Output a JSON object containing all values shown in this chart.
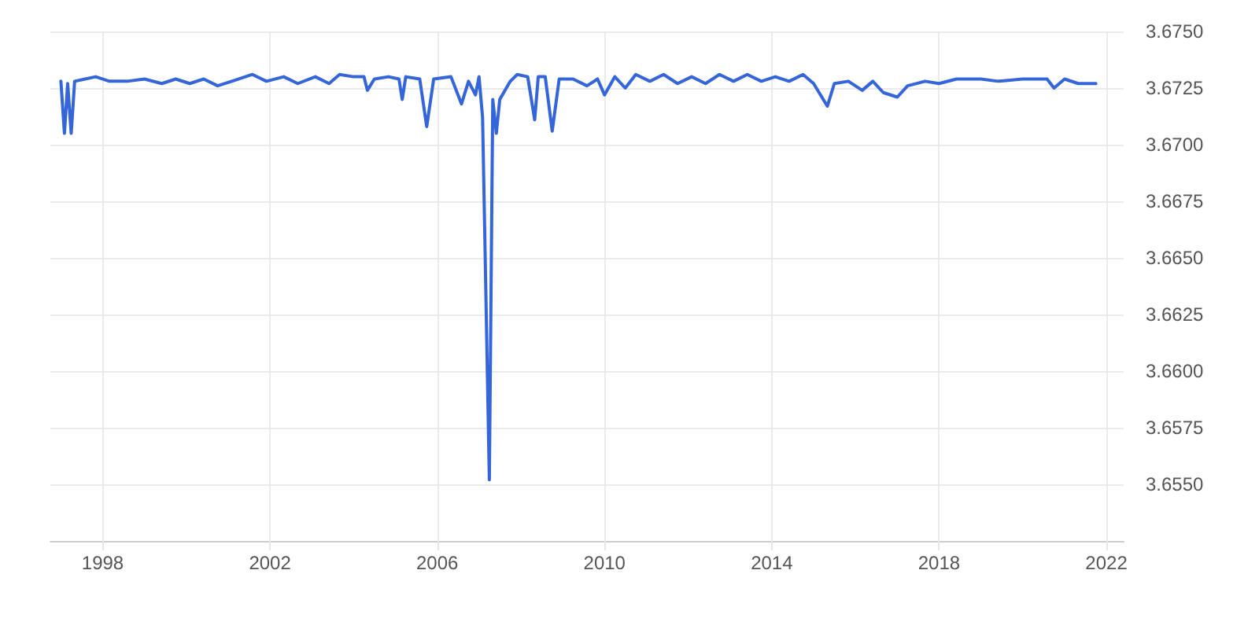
{
  "chart_data": {
    "type": "line",
    "color": "#3465d9",
    "line_style": "solid",
    "marker": "none",
    "grid": true,
    "x": [
      "1997-01",
      "1997-02",
      "1997-03",
      "1997-04",
      "1997-05",
      "1997-08",
      "1997-11",
      "1998-03",
      "1998-08",
      "1999-01",
      "1999-06",
      "1999-10",
      "2000-02",
      "2000-06",
      "2000-10",
      "2001-02",
      "2001-08",
      "2001-12",
      "2002-05",
      "2002-09",
      "2003-02",
      "2003-06",
      "2003-09",
      "2004-01",
      "2004-04",
      "2004-05",
      "2004-07",
      "2004-11",
      "2005-02",
      "2005-03",
      "2005-04",
      "2005-08",
      "2005-10",
      "2005-12",
      "2006-05",
      "2006-08",
      "2006-10",
      "2006-12",
      "2007-01",
      "2007-02",
      "2007-04",
      "2007-05",
      "2007-06",
      "2007-07",
      "2007-10",
      "2007-12",
      "2008-03",
      "2008-05",
      "2008-06",
      "2008-08",
      "2008-10",
      "2008-12",
      "2009-04",
      "2009-08",
      "2009-11",
      "2010-01",
      "2010-04",
      "2010-07",
      "2010-10",
      "2011-02",
      "2011-06",
      "2011-10",
      "2012-02",
      "2012-06",
      "2012-10",
      "2013-02",
      "2013-06",
      "2013-10",
      "2014-02",
      "2014-06",
      "2014-10",
      "2015-01",
      "2015-05",
      "2015-07",
      "2015-11",
      "2016-03",
      "2016-06",
      "2016-09",
      "2017-01",
      "2017-04",
      "2017-09",
      "2018-01",
      "2018-06",
      "2019-01",
      "2019-06",
      "2020-01",
      "2020-08",
      "2020-10",
      "2021-01",
      "2021-05",
      "2021-10"
    ],
    "values": [
      3.6728,
      3.6705,
      3.6727,
      3.6705,
      3.6728,
      3.6729,
      3.673,
      3.6728,
      3.6728,
      3.6729,
      3.6727,
      3.6729,
      3.6727,
      3.6729,
      3.6726,
      3.6728,
      3.6731,
      3.6728,
      3.673,
      3.6727,
      3.673,
      3.6727,
      3.6731,
      3.673,
      3.673,
      3.6724,
      3.6729,
      3.673,
      3.6729,
      3.672,
      3.673,
      3.6729,
      3.6708,
      3.6729,
      3.673,
      3.6718,
      3.6728,
      3.6722,
      3.673,
      3.6712,
      3.6552,
      3.672,
      3.6705,
      3.672,
      3.6728,
      3.6731,
      3.673,
      3.6711,
      3.673,
      3.673,
      3.6706,
      3.6729,
      3.6729,
      3.6726,
      3.6729,
      3.6722,
      3.673,
      3.6725,
      3.6731,
      3.6728,
      3.6731,
      3.6727,
      3.673,
      3.6727,
      3.6731,
      3.6728,
      3.6731,
      3.6728,
      3.673,
      3.6728,
      3.6731,
      3.6727,
      3.6717,
      3.6727,
      3.6728,
      3.6724,
      3.6728,
      3.6723,
      3.6721,
      3.6726,
      3.6728,
      3.6727,
      3.6729,
      3.6729,
      3.6728,
      3.6729,
      3.6729,
      3.6725,
      3.6729,
      3.6727,
      3.6727
    ],
    "xlim": [
      "1996-10",
      "2022-06"
    ],
    "xticks": [
      "1998",
      "2002",
      "2006",
      "2010",
      "2014",
      "2018",
      "2022"
    ],
    "ylim": [
      3.6525,
      3.675
    ],
    "yticks": [
      {
        "value": 3.655,
        "label": "3.6550"
      },
      {
        "value": 3.6575,
        "label": "3.6575"
      },
      {
        "value": 3.66,
        "label": "3.6600"
      },
      {
        "value": 3.6625,
        "label": "3.6625"
      },
      {
        "value": 3.665,
        "label": "3.6650"
      },
      {
        "value": 3.6675,
        "label": "3.6675"
      },
      {
        "value": 3.67,
        "label": "3.6700"
      },
      {
        "value": 3.6725,
        "label": "3.6725"
      },
      {
        "value": 3.675,
        "label": "3.6750"
      }
    ]
  }
}
